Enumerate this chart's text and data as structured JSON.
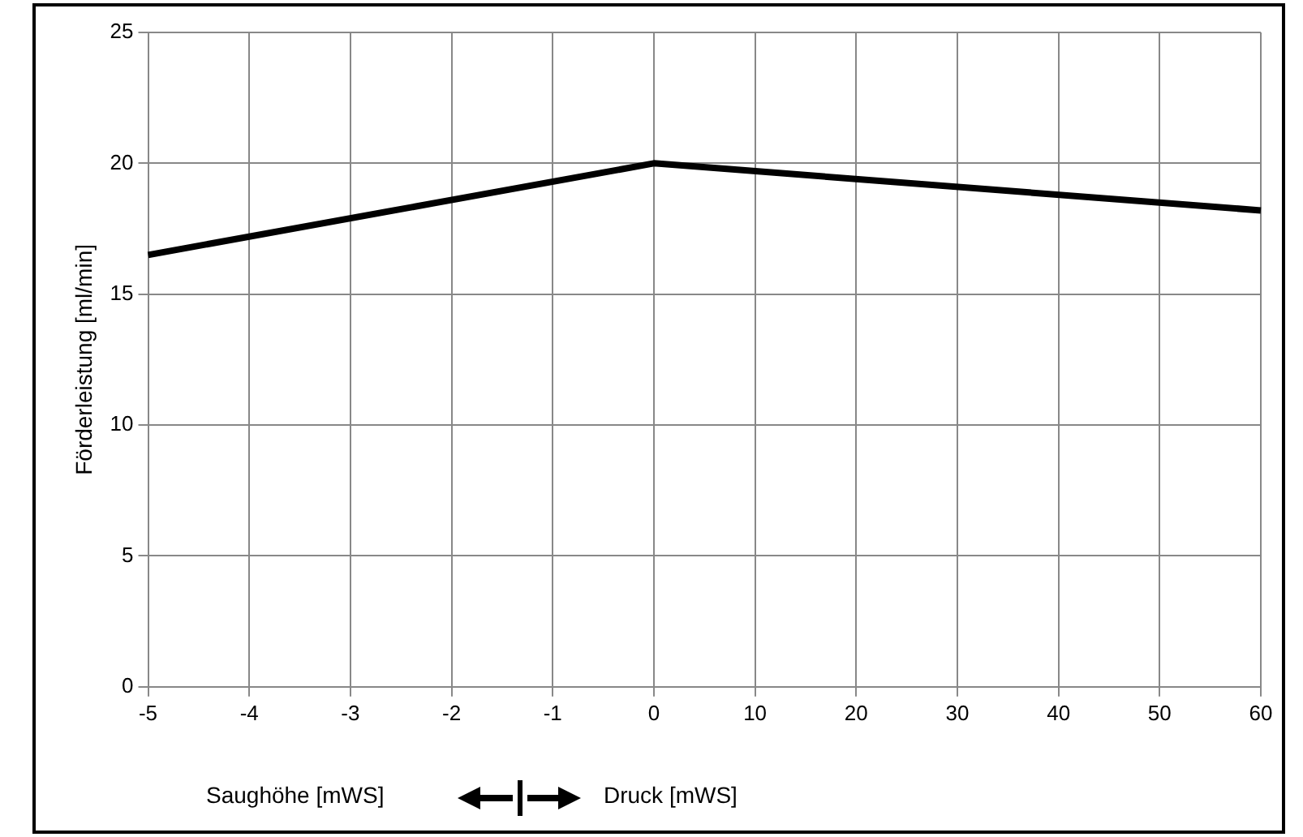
{
  "chart_data": {
    "type": "line",
    "xlabel": "Saughöhe [mWS]",
    "ylabel": "Förderleistung [ml/min]",
    "categories": [
      "-5",
      "-4",
      "-3",
      "-2",
      "-1",
      "0",
      "10",
      "20",
      "30",
      "40",
      "50",
      "60"
    ],
    "series": [
      {
        "color": "#000000",
        "values": [
          16.5,
          null,
          null,
          null,
          null,
          20,
          null,
          null,
          null,
          null,
          null,
          18.2
        ]
      }
    ],
    "ylim": [
      0,
      25
    ],
    "yticks": [
      0,
      5,
      10,
      15,
      20,
      25
    ],
    "grid": true,
    "legend": false,
    "marker": "none",
    "line_style": "solid",
    "annotations": [
      "Druck [mWS]"
    ]
  }
}
